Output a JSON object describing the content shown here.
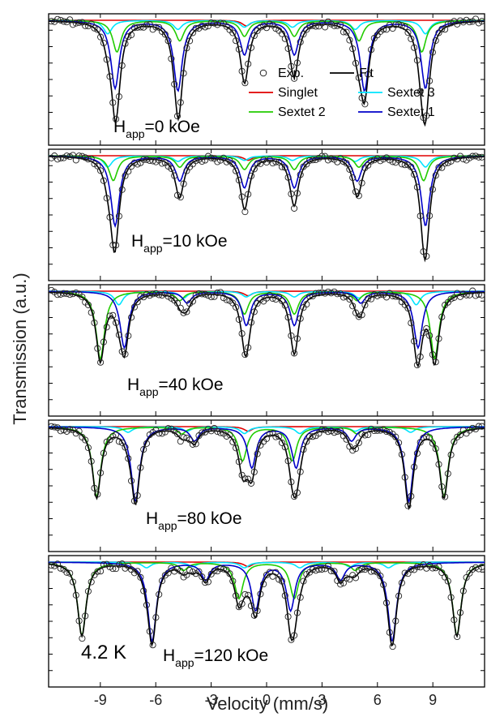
{
  "chart_data": {
    "type": "line",
    "xlabel": "Velocity (mm/s)",
    "ylabel": "Transmission (a.u.)",
    "xlim": [
      -11.8,
      11.8
    ],
    "xticks": [
      "-9",
      "-6",
      "-3",
      "0",
      "3",
      "6",
      "9"
    ],
    "grid": false,
    "temperature_label": "4.2 K",
    "colors": {
      "Exp": "#000000",
      "Fit": "#000000",
      "Singlet": "#e00000",
      "Sextet 3": "#00e5ff",
      "Sextet 2": "#22cc00",
      "Sextet 1": "#0000c8"
    },
    "legend": {
      "placement": "inside first panel, right",
      "entries": [
        {
          "label": "Exp.",
          "symbol": "circle"
        },
        {
          "label": "Fit",
          "symbol": "line"
        },
        {
          "label": "Singlet",
          "symbol": "line"
        },
        {
          "label": "Sextet 3",
          "symbol": "line"
        },
        {
          "label": "Sextet 2",
          "symbol": "line"
        },
        {
          "label": "Sextet 1",
          "symbol": "line"
        }
      ]
    },
    "panels": [
      {
        "label_main": "H",
        "label_sub": "app",
        "label_value": "=0 kOe",
        "series": [
          {
            "name": "Singlet",
            "lines": [
              {
                "x": -1.1,
                "depth": 0.05
              }
            ]
          },
          {
            "name": "Sextet 3",
            "lines": [
              {
                "x": -8.6,
                "depth": 0.12
              },
              {
                "x": -4.8,
                "depth": 0.08
              },
              {
                "x": -1.2,
                "depth": 0.06
              },
              {
                "x": 1.4,
                "depth": 0.06
              },
              {
                "x": 4.8,
                "depth": 0.08
              },
              {
                "x": 8.6,
                "depth": 0.12
              }
            ]
          },
          {
            "name": "Sextet 2",
            "lines": [
              {
                "x": -8.1,
                "depth": 0.28
              },
              {
                "x": -4.7,
                "depth": 0.18
              },
              {
                "x": -1.2,
                "depth": 0.14
              },
              {
                "x": 1.5,
                "depth": 0.14
              },
              {
                "x": 5.0,
                "depth": 0.18
              },
              {
                "x": 8.4,
                "depth": 0.28
              }
            ]
          },
          {
            "name": "Sextet 1",
            "lines": [
              {
                "x": -8.2,
                "depth": 0.6
              },
              {
                "x": -4.8,
                "depth": 0.62
              },
              {
                "x": -1.2,
                "depth": 0.3
              },
              {
                "x": 1.5,
                "depth": 0.3
              },
              {
                "x": 5.3,
                "depth": 0.62
              },
              {
                "x": 8.6,
                "depth": 0.6
              }
            ]
          }
        ]
      },
      {
        "label_main": "H",
        "label_sub": "app",
        "label_value": "=10 kOe",
        "series": [
          {
            "name": "Singlet",
            "lines": [
              {
                "x": -1.0,
                "depth": 0.04
              }
            ]
          },
          {
            "name": "Sextet 3",
            "lines": [
              {
                "x": -8.6,
                "depth": 0.1
              },
              {
                "x": -4.8,
                "depth": 0.05
              },
              {
                "x": -1.2,
                "depth": 0.04
              },
              {
                "x": 1.4,
                "depth": 0.04
              },
              {
                "x": 4.8,
                "depth": 0.05
              },
              {
                "x": 8.6,
                "depth": 0.1
              }
            ]
          },
          {
            "name": "Sextet 2",
            "lines": [
              {
                "x": -8.3,
                "depth": 0.22
              },
              {
                "x": -4.7,
                "depth": 0.1
              },
              {
                "x": -1.2,
                "depth": 0.12
              },
              {
                "x": 1.5,
                "depth": 0.12
              },
              {
                "x": 5.0,
                "depth": 0.1
              },
              {
                "x": 8.5,
                "depth": 0.22
              }
            ]
          },
          {
            "name": "Sextet 1",
            "lines": [
              {
                "x": -8.2,
                "depth": 0.62
              },
              {
                "x": -4.7,
                "depth": 0.22
              },
              {
                "x": -1.2,
                "depth": 0.28
              },
              {
                "x": 1.5,
                "depth": 0.28
              },
              {
                "x": 4.9,
                "depth": 0.22
              },
              {
                "x": 8.6,
                "depth": 0.62
              }
            ]
          }
        ]
      },
      {
        "label_main": "H",
        "label_sub": "app",
        "label_value": "=40 kOe",
        "series": [
          {
            "name": "Singlet",
            "lines": [
              {
                "x": -1.0,
                "depth": 0.04
              }
            ]
          },
          {
            "name": "Sextet 3",
            "lines": [
              {
                "x": -8.0,
                "depth": 0.12
              },
              {
                "x": -4.5,
                "depth": 0.06
              },
              {
                "x": -1.1,
                "depth": 0.05
              },
              {
                "x": 1.5,
                "depth": 0.05
              },
              {
                "x": 5.0,
                "depth": 0.06
              },
              {
                "x": 8.1,
                "depth": 0.12
              }
            ]
          },
          {
            "name": "Sextet 2",
            "lines": [
              {
                "x": -9.0,
                "depth": 0.6
              },
              {
                "x": -4.7,
                "depth": 0.08
              },
              {
                "x": -1.2,
                "depth": 0.2
              },
              {
                "x": 1.5,
                "depth": 0.2
              },
              {
                "x": 4.9,
                "depth": 0.08
              },
              {
                "x": 9.1,
                "depth": 0.6
              }
            ]
          },
          {
            "name": "Sextet 1",
            "lines": [
              {
                "x": -7.7,
                "depth": 0.5
              },
              {
                "x": -4.3,
                "depth": 0.1
              },
              {
                "x": -1.1,
                "depth": 0.3
              },
              {
                "x": 1.5,
                "depth": 0.3
              },
              {
                "x": 5.1,
                "depth": 0.1
              },
              {
                "x": 8.2,
                "depth": 0.5
              }
            ]
          }
        ]
      },
      {
        "label_main": "H",
        "label_sub": "app",
        "label_value": "=80 kOe",
        "series": [
          {
            "name": "Singlet",
            "lines": [
              {
                "x": -1.0,
                "depth": 0.04
              }
            ]
          },
          {
            "name": "Sextet 3",
            "lines": [
              {
                "x": -7.5,
                "depth": 0.05
              },
              {
                "x": -4.3,
                "depth": 0.04
              },
              {
                "x": -1.2,
                "depth": 0.06
              },
              {
                "x": 1.8,
                "depth": 0.06
              },
              {
                "x": 4.8,
                "depth": 0.04
              },
              {
                "x": 7.8,
                "depth": 0.05
              }
            ]
          },
          {
            "name": "Sextet 2",
            "lines": [
              {
                "x": -9.2,
                "depth": 0.62
              },
              {
                "x": -4.6,
                "depth": 0.06
              },
              {
                "x": -1.3,
                "depth": 0.3
              },
              {
                "x": 1.4,
                "depth": 0.3
              },
              {
                "x": 4.9,
                "depth": 0.06
              },
              {
                "x": 9.6,
                "depth": 0.62
              }
            ]
          },
          {
            "name": "Sextet 1",
            "lines": [
              {
                "x": -7.1,
                "depth": 0.66
              },
              {
                "x": -3.9,
                "depth": 0.12
              },
              {
                "x": -0.8,
                "depth": 0.36
              },
              {
                "x": 1.6,
                "depth": 0.36
              },
              {
                "x": 4.6,
                "depth": 0.12
              },
              {
                "x": 7.7,
                "depth": 0.66
              }
            ]
          }
        ]
      },
      {
        "label_main": "H",
        "label_sub": "app",
        "label_value": "=120 kOe",
        "series": [
          {
            "name": "Singlet",
            "lines": [
              {
                "x": -1.0,
                "depth": 0.04
              }
            ]
          },
          {
            "name": "Sextet 3",
            "lines": [
              {
                "x": -6.5,
                "depth": 0.05
              },
              {
                "x": -4.0,
                "depth": 0.04
              },
              {
                "x": -1.2,
                "depth": 0.05
              },
              {
                "x": 1.8,
                "depth": 0.05
              },
              {
                "x": 4.5,
                "depth": 0.04
              },
              {
                "x": 6.6,
                "depth": 0.05
              }
            ]
          },
          {
            "name": "Sextet 2",
            "lines": [
              {
                "x": -10.0,
                "depth": 0.65
              },
              {
                "x": -4.5,
                "depth": 0.07
              },
              {
                "x": -1.5,
                "depth": 0.32
              },
              {
                "x": 1.5,
                "depth": 0.32
              },
              {
                "x": 4.8,
                "depth": 0.07
              },
              {
                "x": 10.3,
                "depth": 0.65
              }
            ]
          },
          {
            "name": "Sextet 1",
            "lines": [
              {
                "x": -6.2,
                "depth": 0.7
              },
              {
                "x": -3.3,
                "depth": 0.15
              },
              {
                "x": -0.6,
                "depth": 0.42
              },
              {
                "x": 1.3,
                "depth": 0.42
              },
              {
                "x": 4.0,
                "depth": 0.15
              },
              {
                "x": 6.8,
                "depth": 0.7
              }
            ]
          }
        ]
      }
    ]
  }
}
